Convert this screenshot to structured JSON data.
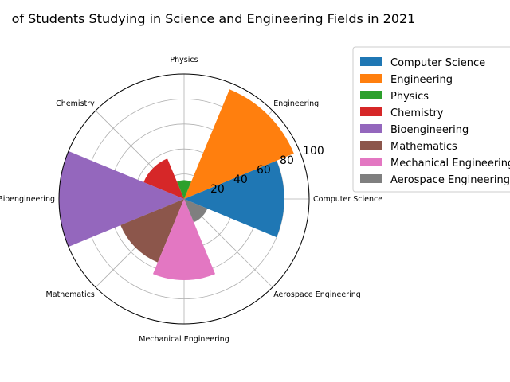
{
  "chart_data": {
    "type": "polar-bar",
    "title": "of Students Studying in Science and Engineering Fields in 2021",
    "categories": [
      "Computer Science",
      "Engineering",
      "Physics",
      "Chemistry",
      "Bioengineering",
      "Mathematics",
      "Mechanical Engineering",
      "Aerospace Engineering"
    ],
    "values": [
      80,
      95,
      15,
      35,
      100,
      55,
      65,
      20
    ],
    "colors": [
      "#1f77b4",
      "#ff7f0e",
      "#2ca02c",
      "#d62728",
      "#9467bd",
      "#8c564b",
      "#e377c2",
      "#7f7f7f"
    ],
    "rlim": [
      0,
      100
    ],
    "rticks": [
      "20",
      "40",
      "60",
      "80",
      "100"
    ],
    "grid": true,
    "legend": {
      "placement": "outside-right",
      "entries": [
        "Computer Science",
        "Engineering",
        "Physics",
        "Chemistry",
        "Bioengineering",
        "Mathematics",
        "Mechanical Engineering",
        "Aerospace Engineering"
      ]
    }
  }
}
